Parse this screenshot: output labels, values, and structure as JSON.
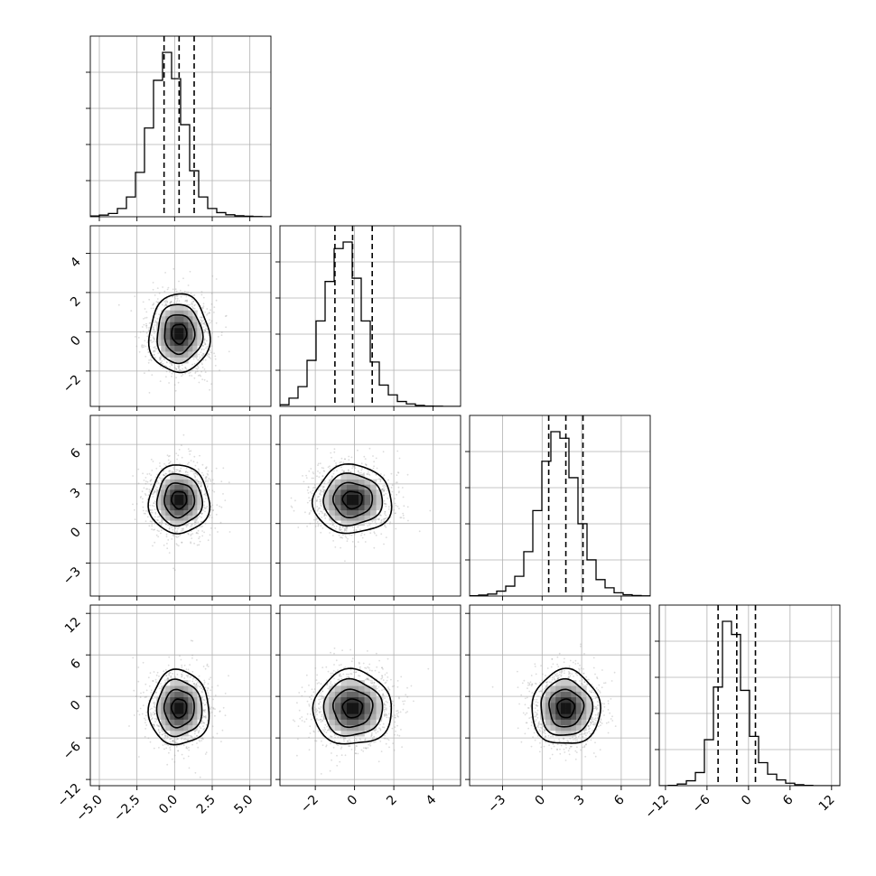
{
  "chart_data": {
    "type": "corner",
    "n_params": 4,
    "grid": true,
    "params": [
      {
        "index": 0,
        "mean": 0.3,
        "std": 1.0,
        "range": [
          -5.6,
          6.4
        ],
        "ticks": [
          -5.0,
          -2.5,
          0.0,
          2.5,
          5.0
        ],
        "tick_labels": [
          "−5.0",
          "−2.5",
          "0.0",
          "2.5",
          "5.0"
        ],
        "quantiles": [
          -0.7,
          0.3,
          1.3
        ]
      },
      {
        "index": 1,
        "mean": -0.1,
        "std": 1.0,
        "range": [
          -3.8,
          5.4
        ],
        "ticks": [
          -2,
          0,
          2,
          4
        ],
        "tick_labels": [
          "−2",
          "0",
          "2",
          "4"
        ],
        "quantiles": [
          -1.0,
          -0.1,
          0.9
        ]
      },
      {
        "index": 2,
        "mean": 1.8,
        "std": 1.3,
        "range": [
          -5.5,
          8.2
        ],
        "ticks": [
          -3,
          0,
          3,
          6
        ],
        "tick_labels": [
          "−3",
          "0",
          "3",
          "6"
        ],
        "quantiles": [
          0.5,
          1.8,
          3.1
        ]
      },
      {
        "index": 3,
        "mean": -1.7,
        "std": 2.7,
        "range": [
          -12.9,
          13.2
        ],
        "ticks": [
          -12,
          -6,
          0,
          6,
          12
        ],
        "tick_labels": [
          "−12",
          "−6",
          "0",
          "6",
          "12"
        ],
        "quantiles": [
          -4.4,
          -1.7,
          1.0
        ]
      }
    ],
    "histograms": [
      {
        "param": 0,
        "bin_edges": [
          -5.6,
          -5.0,
          -4.4,
          -3.8,
          -3.2,
          -2.6,
          -2.0,
          -1.4,
          -0.8,
          -0.2,
          0.4,
          1.0,
          1.6,
          2.2,
          2.8,
          3.4,
          4.0,
          4.6,
          5.2,
          5.8,
          6.4
        ],
        "counts": [
          0.005,
          0.01,
          0.02,
          0.05,
          0.12,
          0.27,
          0.54,
          0.83,
          1.0,
          0.84,
          0.56,
          0.28,
          0.12,
          0.05,
          0.025,
          0.012,
          0.006,
          0.003,
          0.001,
          0.0
        ]
      },
      {
        "param": 1,
        "bin_edges": [
          -3.8,
          -3.34,
          -2.88,
          -2.42,
          -1.96,
          -1.5,
          -1.04,
          -0.58,
          -0.12,
          0.34,
          0.8,
          1.26,
          1.72,
          2.18,
          2.64,
          3.1,
          3.56,
          4.02,
          4.48,
          4.94,
          5.4
        ],
        "counts": [
          0.01,
          0.05,
          0.12,
          0.28,
          0.52,
          0.76,
          0.96,
          1.0,
          0.78,
          0.52,
          0.27,
          0.13,
          0.07,
          0.03,
          0.015,
          0.006,
          0.002,
          0.001,
          0.0,
          0.0
        ]
      },
      {
        "param": 2,
        "bin_edges": [
          -5.5,
          -4.815,
          -4.13,
          -3.445,
          -2.76,
          -2.075,
          -1.39,
          -0.705,
          -0.02,
          0.665,
          1.35,
          2.035,
          2.72,
          3.405,
          4.09,
          4.775,
          5.46,
          6.145,
          6.83,
          7.515,
          8.2
        ],
        "counts": [
          0.002,
          0.006,
          0.012,
          0.03,
          0.06,
          0.12,
          0.27,
          0.52,
          0.82,
          1.0,
          0.96,
          0.72,
          0.44,
          0.22,
          0.1,
          0.05,
          0.02,
          0.008,
          0.003,
          0.001
        ]
      },
      {
        "param": 3,
        "bin_edges": [
          -12.9,
          -11.595,
          -10.29,
          -8.985,
          -7.68,
          -6.375,
          -5.07,
          -3.765,
          -2.46,
          -1.155,
          0.15,
          1.455,
          2.76,
          4.065,
          5.37,
          6.675,
          7.98,
          9.285,
          10.59,
          11.895,
          13.2
        ],
        "counts": [
          0.0,
          0.002,
          0.01,
          0.03,
          0.08,
          0.28,
          0.6,
          1.0,
          0.92,
          0.58,
          0.3,
          0.14,
          0.07,
          0.035,
          0.015,
          0.006,
          0.002,
          0.0,
          0.0,
          0.0
        ]
      }
    ],
    "pairs": [
      {
        "x": 0,
        "y": 1
      },
      {
        "x": 0,
        "y": 2
      },
      {
        "x": 1,
        "y": 2
      },
      {
        "x": 0,
        "y": 3
      },
      {
        "x": 1,
        "y": 3
      },
      {
        "x": 2,
        "y": 3
      }
    ],
    "contour_levels_sigma": [
      0.5,
      1.0,
      1.5,
      2.0
    ],
    "colors": {
      "line": "#000000",
      "grid": "#b0b0b0",
      "points": "#9a9a9a",
      "density_dark": "#000000"
    }
  }
}
